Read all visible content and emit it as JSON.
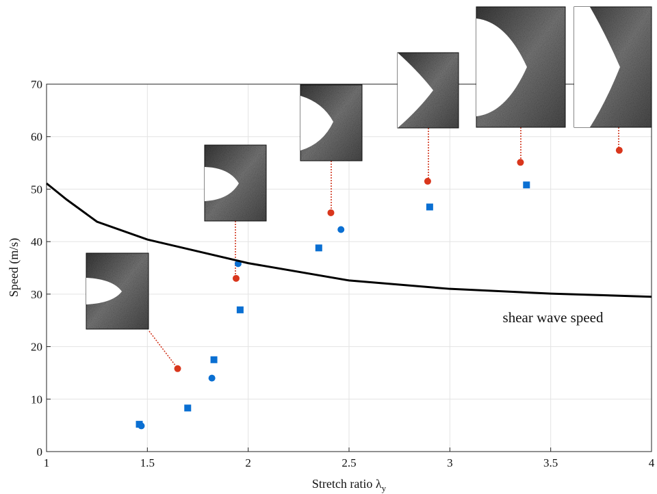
{
  "chart_data": {
    "type": "scatter",
    "x_label": "Stretch ratio λ",
    "x_label_subscript": "y",
    "y_label": "Speed (m/s)",
    "annotation": "shear wave speed",
    "xlim": [
      1,
      4
    ],
    "xticks": [
      1,
      1.5,
      2,
      2.5,
      3,
      3.5,
      4
    ],
    "ylim": [
      0,
      70
    ],
    "yticks": [
      0,
      10,
      20,
      30,
      40,
      50,
      60,
      70
    ],
    "grid": true,
    "series": [
      {
        "marker": "square",
        "color": "#0a6fd2",
        "x": [
          1.46,
          1.7,
          1.83,
          1.96,
          2.35,
          2.9,
          3.38
        ],
        "values": [
          5.2,
          8.3,
          17.5,
          27,
          38.8,
          46.6,
          50.8
        ]
      },
      {
        "marker": "circle",
        "color": "#0a6fd2",
        "x": [
          1.47,
          1.82,
          1.95,
          2.46
        ],
        "values": [
          4.9,
          14,
          35.8,
          42.3
        ]
      },
      {
        "marker": "circle",
        "color": "#d9361c",
        "x": [
          1.65,
          1.94,
          2.41,
          2.89,
          3.35,
          3.84
        ],
        "values": [
          15.8,
          33,
          45.5,
          51.5,
          55.1,
          57.4
        ]
      },
      {
        "marker": "line",
        "color": "#000000",
        "x": [
          1,
          1.1,
          1.25,
          1.5,
          2,
          2.5,
          3,
          3.5,
          4
        ],
        "values": [
          51.1,
          48,
          43.8,
          40.4,
          35.9,
          32.6,
          31,
          30.1,
          29.5
        ]
      }
    ]
  }
}
